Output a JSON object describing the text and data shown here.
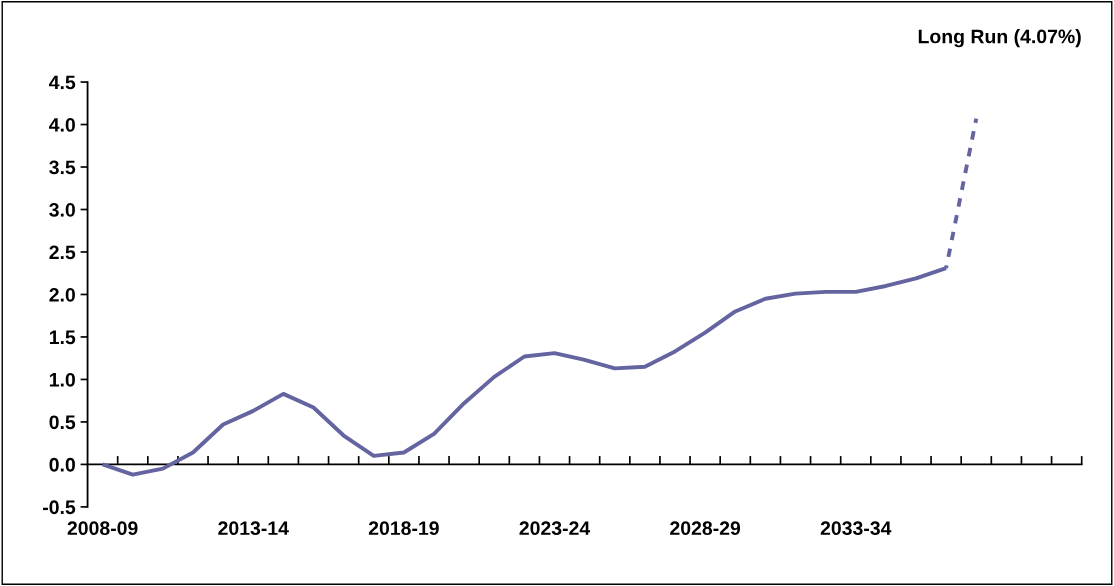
{
  "chart_data": {
    "type": "line",
    "title": "Long Run (4.07%)",
    "categories": [
      "2008-09",
      null,
      null,
      null,
      null,
      "2013-14",
      null,
      null,
      null,
      null,
      "2018-19",
      null,
      null,
      null,
      null,
      "2023-24",
      null,
      null,
      null,
      null,
      "2028-29",
      null,
      null,
      null,
      null,
      "2033-34",
      null,
      null,
      null,
      null,
      null,
      null,
      null
    ],
    "series": [
      {
        "color": "#6464a0",
        "line_style": "solid",
        "values": [
          0.0,
          -0.12,
          -0.05,
          0.14,
          0.47,
          0.63,
          0.83,
          0.67,
          0.34,
          0.1,
          0.14,
          0.36,
          0.72,
          1.03,
          1.27,
          1.31,
          1.23,
          1.13,
          1.15,
          1.33,
          1.55,
          1.8,
          1.95,
          2.01,
          2.03,
          2.03,
          2.1,
          2.19,
          2.31,
          null,
          null,
          null,
          null
        ]
      },
      {
        "color": "#6464a0",
        "line_style": "dashed",
        "values": [
          null,
          null,
          null,
          null,
          null,
          null,
          null,
          null,
          null,
          null,
          null,
          null,
          null,
          null,
          null,
          null,
          null,
          null,
          null,
          null,
          null,
          null,
          null,
          null,
          null,
          null,
          null,
          null,
          2.31,
          4.07,
          null,
          null,
          null
        ]
      }
    ],
    "ylim": [
      -0.5,
      4.5
    ],
    "yticks": [
      {
        "value": -0.5,
        "label": "-0.5"
      },
      {
        "value": 0.0,
        "label": "0.0"
      },
      {
        "value": 0.5,
        "label": "0.5"
      },
      {
        "value": 1.0,
        "label": "1.0"
      },
      {
        "value": 1.5,
        "label": "1.5"
      },
      {
        "value": 2.0,
        "label": "2.0"
      },
      {
        "value": 2.5,
        "label": "2.5"
      },
      {
        "value": 3.0,
        "label": "3.0"
      },
      {
        "value": 3.5,
        "label": "3.5"
      },
      {
        "value": 4.0,
        "label": "4.0"
      },
      {
        "value": 4.5,
        "label": "4.5"
      }
    ],
    "marker": "none"
  }
}
